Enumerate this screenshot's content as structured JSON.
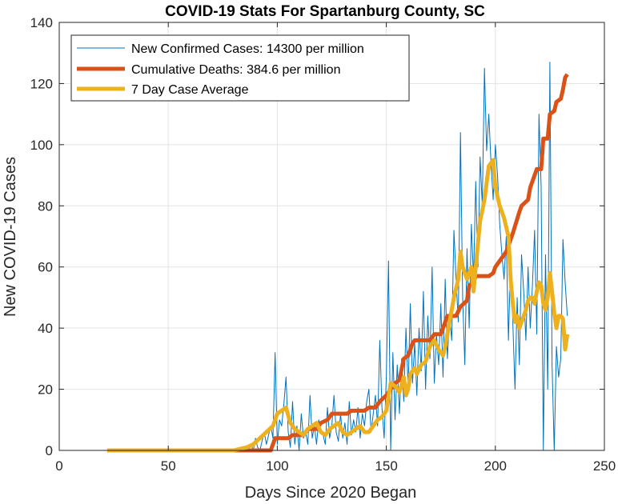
{
  "chart_data": {
    "type": "line",
    "title": "COVID-19 Stats For Spartanburg County, SC",
    "xlabel": "Days Since 2020 Began",
    "ylabel": "New COVID-19 Cases",
    "xlim": [
      0,
      250
    ],
    "ylim": [
      0,
      140
    ],
    "xticks": [
      0,
      50,
      100,
      150,
      200,
      250
    ],
    "yticks": [
      0,
      20,
      40,
      60,
      80,
      100,
      120,
      140
    ],
    "grid": true,
    "legend_position": "top-left",
    "series": [
      {
        "name": "New Confirmed Cases: 14300 per million",
        "color": "#0072BD",
        "line_width": "thin",
        "points": [
          [
            22,
            0
          ],
          [
            40,
            0
          ],
          [
            60,
            0
          ],
          [
            80,
            0
          ],
          [
            84,
            1
          ],
          [
            86,
            0
          ],
          [
            88,
            2
          ],
          [
            89,
            0
          ],
          [
            90,
            4
          ],
          [
            91,
            1
          ],
          [
            92,
            0
          ],
          [
            93,
            3
          ],
          [
            94,
            6
          ],
          [
            95,
            2
          ],
          [
            96,
            5
          ],
          [
            97,
            8
          ],
          [
            98,
            4
          ],
          [
            99,
            32
          ],
          [
            100,
            2
          ],
          [
            101,
            10
          ],
          [
            102,
            8
          ],
          [
            103,
            15
          ],
          [
            104,
            24
          ],
          [
            105,
            6
          ],
          [
            106,
            1
          ],
          [
            107,
            16
          ],
          [
            108,
            2
          ],
          [
            109,
            8
          ],
          [
            110,
            0
          ],
          [
            111,
            12
          ],
          [
            112,
            4
          ],
          [
            113,
            6
          ],
          [
            114,
            2
          ],
          [
            115,
            18
          ],
          [
            116,
            4
          ],
          [
            117,
            8
          ],
          [
            118,
            2
          ],
          [
            119,
            10
          ],
          [
            120,
            6
          ],
          [
            121,
            5
          ],
          [
            122,
            2
          ],
          [
            123,
            14
          ],
          [
            124,
            4
          ],
          [
            125,
            8
          ],
          [
            126,
            18
          ],
          [
            127,
            6
          ],
          [
            128,
            3
          ],
          [
            129,
            12
          ],
          [
            130,
            4
          ],
          [
            131,
            9
          ],
          [
            132,
            2
          ],
          [
            133,
            16
          ],
          [
            134,
            5
          ],
          [
            135,
            10
          ],
          [
            136,
            6
          ],
          [
            137,
            14
          ],
          [
            138,
            4
          ],
          [
            139,
            12
          ],
          [
            140,
            8
          ],
          [
            141,
            16
          ],
          [
            142,
            20
          ],
          [
            143,
            6
          ],
          [
            144,
            12
          ],
          [
            145,
            18
          ],
          [
            146,
            8
          ],
          [
            147,
            36
          ],
          [
            148,
            14
          ],
          [
            149,
            4
          ],
          [
            150,
            24
          ],
          [
            151,
            62
          ],
          [
            152,
            0
          ],
          [
            153,
            32
          ],
          [
            154,
            10
          ],
          [
            155,
            28
          ],
          [
            156,
            12
          ],
          [
            157,
            30
          ],
          [
            158,
            16
          ],
          [
            159,
            40
          ],
          [
            160,
            20
          ],
          [
            161,
            48
          ],
          [
            162,
            22
          ],
          [
            163,
            35
          ],
          [
            164,
            18
          ],
          [
            165,
            40
          ],
          [
            166,
            26
          ],
          [
            167,
            52
          ],
          [
            168,
            20
          ],
          [
            169,
            44
          ],
          [
            170,
            30
          ],
          [
            171,
            60
          ],
          [
            172,
            22
          ],
          [
            173,
            38
          ],
          [
            174,
            28
          ],
          [
            175,
            48
          ],
          [
            176,
            24
          ],
          [
            177,
            56
          ],
          [
            178,
            30
          ],
          [
            179,
            44
          ],
          [
            180,
            36
          ],
          [
            181,
            72
          ],
          [
            182,
            56
          ],
          [
            183,
            42
          ],
          [
            184,
            104
          ],
          [
            185,
            50
          ],
          [
            186,
            28
          ],
          [
            187,
            66
          ],
          [
            188,
            40
          ],
          [
            189,
            74
          ],
          [
            190,
            56
          ],
          [
            191,
            88
          ],
          [
            192,
            60
          ],
          [
            193,
            96
          ],
          [
            194,
            80
          ],
          [
            195,
            125
          ],
          [
            196,
            98
          ],
          [
            197,
            110
          ],
          [
            198,
            94
          ],
          [
            199,
            82
          ],
          [
            200,
            100
          ],
          [
            201,
            90
          ],
          [
            202,
            74
          ],
          [
            203,
            64
          ],
          [
            204,
            56
          ],
          [
            205,
            70
          ],
          [
            206,
            36
          ],
          [
            207,
            62
          ],
          [
            208,
            42
          ],
          [
            209,
            20
          ],
          [
            210,
            50
          ],
          [
            211,
            28
          ],
          [
            212,
            64
          ],
          [
            213,
            52
          ],
          [
            214,
            36
          ],
          [
            215,
            60
          ],
          [
            216,
            40
          ],
          [
            217,
            54
          ],
          [
            218,
            72
          ],
          [
            219,
            38
          ],
          [
            220,
            110
          ],
          [
            221,
            86
          ],
          [
            222,
            0
          ],
          [
            223,
            64
          ],
          [
            224,
            20
          ],
          [
            225,
            127
          ],
          [
            226,
            28
          ],
          [
            227,
            0
          ],
          [
            228,
            34
          ],
          [
            229,
            24
          ],
          [
            230,
            30
          ],
          [
            231,
            69
          ],
          [
            232,
            55
          ],
          [
            233,
            44
          ]
        ]
      },
      {
        "name": "Cumulative Deaths: 384.6 per million",
        "color": "#D95319",
        "line_width": "thick",
        "points": [
          [
            22,
            0
          ],
          [
            97,
            0
          ],
          [
            99,
            4
          ],
          [
            105,
            4
          ],
          [
            107,
            5
          ],
          [
            112,
            5
          ],
          [
            114,
            7
          ],
          [
            118,
            7
          ],
          [
            120,
            9
          ],
          [
            123,
            10
          ],
          [
            125,
            12
          ],
          [
            132,
            12
          ],
          [
            134,
            13
          ],
          [
            140,
            13
          ],
          [
            142,
            14
          ],
          [
            145,
            14
          ],
          [
            147,
            16
          ],
          [
            150,
            18
          ],
          [
            152,
            20
          ],
          [
            154,
            22
          ],
          [
            156,
            23
          ],
          [
            158,
            30
          ],
          [
            160,
            31
          ],
          [
            162,
            35
          ],
          [
            163,
            36
          ],
          [
            170,
            36
          ],
          [
            172,
            38
          ],
          [
            175,
            38
          ],
          [
            177,
            42
          ],
          [
            178,
            44
          ],
          [
            182,
            44
          ],
          [
            184,
            47
          ],
          [
            187,
            49
          ],
          [
            188,
            54
          ],
          [
            190,
            55
          ],
          [
            191,
            57
          ],
          [
            197,
            57
          ],
          [
            199,
            58
          ],
          [
            200,
            60
          ],
          [
            203,
            63
          ],
          [
            205,
            65
          ],
          [
            208,
            71
          ],
          [
            211,
            78
          ],
          [
            212,
            80
          ],
          [
            215,
            82
          ],
          [
            216,
            86
          ],
          [
            218,
            90
          ],
          [
            219,
            92
          ],
          [
            221,
            92
          ],
          [
            222,
            102
          ],
          [
            224,
            102
          ],
          [
            225,
            110
          ],
          [
            227,
            111
          ],
          [
            228,
            114
          ],
          [
            230,
            115
          ],
          [
            231,
            118
          ],
          [
            232,
            122
          ],
          [
            233,
            123
          ]
        ]
      },
      {
        "name": "7 Day Case Average",
        "color": "#EDB120",
        "line_width": "thick",
        "points": [
          [
            22,
            0
          ],
          [
            40,
            0
          ],
          [
            60,
            0
          ],
          [
            80,
            0
          ],
          [
            83,
            0.5
          ],
          [
            86,
            1
          ],
          [
            89,
            2
          ],
          [
            92,
            4
          ],
          [
            95,
            6
          ],
          [
            98,
            8
          ],
          [
            100,
            12
          ],
          [
            102,
            13
          ],
          [
            104,
            14
          ],
          [
            106,
            9
          ],
          [
            108,
            7
          ],
          [
            110,
            6
          ],
          [
            112,
            5
          ],
          [
            114,
            7
          ],
          [
            116,
            8
          ],
          [
            118,
            9
          ],
          [
            120,
            6
          ],
          [
            122,
            5
          ],
          [
            124,
            7
          ],
          [
            126,
            8
          ],
          [
            128,
            9
          ],
          [
            130,
            6
          ],
          [
            132,
            5
          ],
          [
            134,
            6
          ],
          [
            136,
            7
          ],
          [
            138,
            8
          ],
          [
            140,
            6
          ],
          [
            142,
            6
          ],
          [
            144,
            8
          ],
          [
            146,
            10
          ],
          [
            148,
            11
          ],
          [
            150,
            13
          ],
          [
            152,
            22
          ],
          [
            154,
            21
          ],
          [
            156,
            19
          ],
          [
            158,
            24
          ],
          [
            159,
            18
          ],
          [
            160,
            20
          ],
          [
            161,
            25
          ],
          [
            162,
            26
          ],
          [
            163,
            27
          ],
          [
            164,
            25
          ],
          [
            166,
            28
          ],
          [
            168,
            29
          ],
          [
            170,
            34
          ],
          [
            172,
            36
          ],
          [
            174,
            33
          ],
          [
            176,
            31
          ],
          [
            177,
            34
          ],
          [
            179,
            42
          ],
          [
            181,
            50
          ],
          [
            183,
            56
          ],
          [
            184,
            65
          ],
          [
            185,
            60
          ],
          [
            186,
            58
          ],
          [
            187,
            56
          ],
          [
            189,
            60
          ],
          [
            190,
            52
          ],
          [
            191,
            60
          ],
          [
            193,
            75
          ],
          [
            195,
            82
          ],
          [
            197,
            93
          ],
          [
            198,
            94
          ],
          [
            199,
            95
          ],
          [
            200,
            86
          ],
          [
            201,
            83
          ],
          [
            202,
            80
          ],
          [
            204,
            76
          ],
          [
            206,
            70
          ],
          [
            207,
            56
          ],
          [
            208,
            48
          ],
          [
            209,
            42
          ],
          [
            210,
            44
          ],
          [
            211,
            40
          ],
          [
            212,
            42
          ],
          [
            213,
            44
          ],
          [
            214,
            46
          ],
          [
            215,
            49
          ],
          [
            216,
            50
          ],
          [
            217,
            50
          ],
          [
            218,
            48
          ],
          [
            219,
            52
          ],
          [
            220,
            55
          ],
          [
            221,
            54
          ],
          [
            222,
            48
          ],
          [
            223,
            46
          ],
          [
            224,
            50
          ],
          [
            225,
            58
          ],
          [
            226,
            52
          ],
          [
            227,
            45
          ],
          [
            228,
            40
          ],
          [
            229,
            44
          ],
          [
            230,
            44
          ],
          [
            231,
            43
          ],
          [
            232,
            33
          ],
          [
            233,
            38
          ]
        ]
      }
    ]
  }
}
